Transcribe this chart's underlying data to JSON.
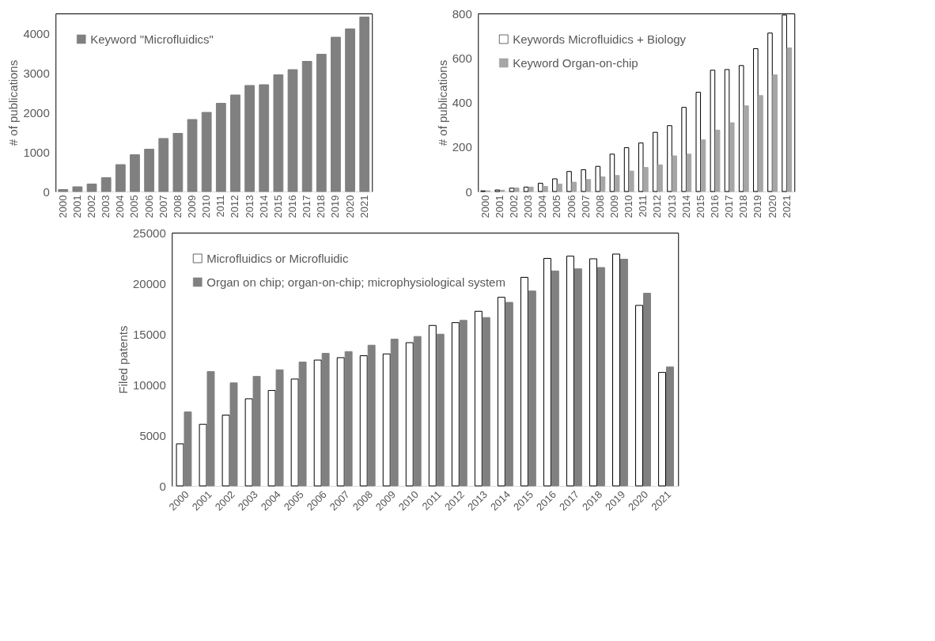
{
  "chart_data": [
    {
      "type": "bar",
      "ylabel": "# of publications",
      "categories": [
        "2000",
        "2001",
        "2002",
        "2003",
        "2004",
        "2005",
        "2006",
        "2007",
        "2008",
        "2009",
        "2010",
        "2011",
        "2012",
        "2013",
        "2014",
        "2015",
        "2016",
        "2017",
        "2018",
        "2019",
        "2020",
        "2021"
      ],
      "ylim": [
        0,
        4500
      ],
      "yticks": [
        0,
        1000,
        2000,
        3000,
        4000
      ],
      "grid": false,
      "legend": "top left",
      "series": [
        {
          "name": "Keyword \"Microfluidics\"",
          "color": "#808080",
          "values": [
            50,
            120,
            190,
            350,
            680,
            930,
            1070,
            1340,
            1470,
            1820,
            2000,
            2230,
            2440,
            2680,
            2700,
            2950,
            3080,
            3290,
            3470,
            3900,
            4110,
            4410
          ]
        }
      ]
    },
    {
      "type": "bar",
      "ylabel": "# of publications",
      "categories": [
        "2000",
        "2001",
        "2002",
        "2003",
        "2004",
        "2005",
        "2006",
        "2007",
        "2008",
        "2009",
        "2010",
        "2011",
        "2012",
        "2013",
        "2014",
        "2015",
        "2016",
        "2017",
        "2018",
        "2019",
        "2020",
        "2021"
      ],
      "ylim": [
        0,
        800
      ],
      "yticks": [
        0,
        200,
        400,
        600,
        800
      ],
      "grid": false,
      "legend": "top left",
      "series": [
        {
          "name": "Keywords Microfluidics + Biology",
          "color": "#ffffff",
          "values": [
            3,
            7,
            15,
            20,
            37,
            57,
            90,
            98,
            113,
            168,
            197,
            218,
            266,
            296,
            378,
            446,
            545,
            548,
            566,
            642,
            712,
            793
          ]
        },
        {
          "name": "Keyword Organ-on-chip",
          "color": "#a6a6a6",
          "values": [
            3,
            6,
            16,
            20,
            23,
            33,
            42,
            54,
            66,
            72,
            92,
            108,
            120,
            160,
            168,
            232,
            276,
            309,
            385,
            431,
            524,
            645
          ]
        }
      ]
    },
    {
      "type": "bar",
      "ylabel": "Filed patents",
      "categories": [
        "2000",
        "2001",
        "2002",
        "2003",
        "2004",
        "2005",
        "2006",
        "2007",
        "2008",
        "2009",
        "2010",
        "2011",
        "2012",
        "2013",
        "2014",
        "2015",
        "2016",
        "2017",
        "2018",
        "2019",
        "2020",
        "2021"
      ],
      "ylim": [
        0,
        25000
      ],
      "yticks": [
        0,
        5000,
        10000,
        15000,
        20000,
        25000
      ],
      "grid": false,
      "legend": "top left",
      "series": [
        {
          "name": "Microfluidics or Microfluidic",
          "color": "#ffffff",
          "values": [
            4150,
            6080,
            6990,
            8600,
            9420,
            10550,
            12420,
            12660,
            12850,
            13030,
            14140,
            15840,
            16120,
            17240,
            18620,
            20590,
            22460,
            22680,
            22420,
            22890,
            17820,
            11200
          ]
        },
        {
          "name": "Organ on chip; organ-on-chip; microphysiological system",
          "color": "#808080",
          "values": [
            7310,
            11290,
            10170,
            10810,
            11460,
            12230,
            13090,
            13260,
            13890,
            14490,
            14750,
            14980,
            16340,
            16620,
            18120,
            19240,
            21220,
            21430,
            21560,
            22380,
            19020,
            11740
          ]
        }
      ]
    }
  ]
}
